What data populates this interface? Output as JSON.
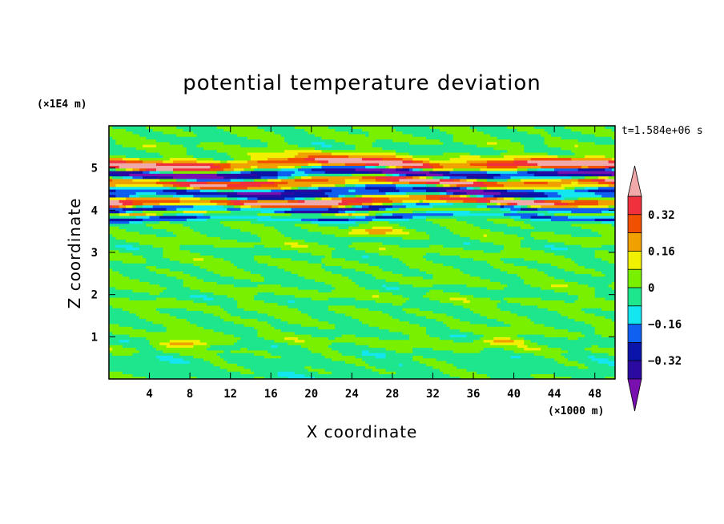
{
  "chart_data": {
    "type": "heatmap",
    "title": "potential temperature deviation",
    "xlabel": "X coordinate",
    "ylabel": "Z coordinate",
    "x_unit": "(×1000 m)",
    "y_unit": "(×1E4 m)",
    "time_label": "t=1.584e+06 s",
    "xlim": [
      0,
      50
    ],
    "ylim": [
      0,
      6
    ],
    "x_ticks": [
      4,
      8,
      12,
      16,
      20,
      24,
      28,
      32,
      36,
      40,
      44,
      48
    ],
    "y_ticks": [
      1,
      2,
      3,
      4,
      5
    ],
    "colorbar": {
      "levels": [
        -0.4,
        -0.32,
        -0.24,
        -0.16,
        -0.08,
        0,
        0.08,
        0.16,
        0.24,
        0.32,
        0.4
      ],
      "tick_labels": [
        "0.32",
        "0.16",
        "0",
        "−0.16",
        "−0.32"
      ],
      "tick_values": [
        0.32,
        0.16,
        0,
        -0.16,
        -0.32
      ],
      "colors": [
        "#7a0fb0",
        "#2a0aa0",
        "#0a14a8",
        "#0f5ff0",
        "#14e6f0",
        "#1ee68c",
        "#78f000",
        "#f0f000",
        "#f0a000",
        "#f05000",
        "#f0303c",
        "#f0a8a8"
      ]
    },
    "bands": [
      {
        "z": 5.25,
        "value": 0.12
      },
      {
        "z": 5.12,
        "value": 0.45
      },
      {
        "z": 5.02,
        "value": 0.3
      },
      {
        "z": 4.9,
        "value": -0.45
      },
      {
        "z": 4.8,
        "value": -0.3
      },
      {
        "z": 4.7,
        "value": 0.45
      },
      {
        "z": 4.58,
        "value": 0.3
      },
      {
        "z": 4.48,
        "value": -0.45
      },
      {
        "z": 4.35,
        "value": -0.35
      },
      {
        "z": 4.25,
        "value": 0.45
      },
      {
        "z": 4.15,
        "value": 0.35
      },
      {
        "z": 4.05,
        "value": -0.45
      },
      {
        "z": 3.95,
        "value": 0.2
      },
      {
        "z": 3.85,
        "value": -0.3
      }
    ],
    "hotspots": [
      {
        "x": 7.5,
        "z": 0.85,
        "value": 0.25
      },
      {
        "x": 38.5,
        "z": 0.9,
        "value": 0.2
      },
      {
        "x": 26,
        "z": 3.5,
        "value": 0.2
      }
    ]
  }
}
